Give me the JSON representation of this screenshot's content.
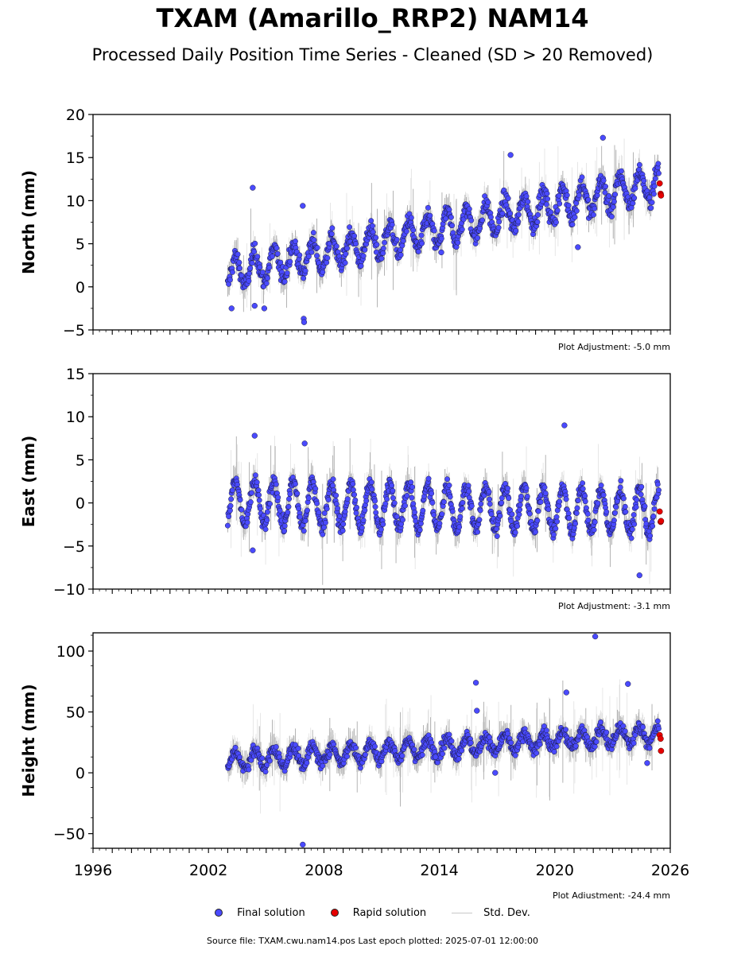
{
  "header": {
    "title": "TXAM (Amarillo_RRP2) NAM14",
    "subtitle": "Processed Daily Position Time Series - Cleaned (SD > 20 Removed)"
  },
  "colors": {
    "final": "#4a4aff",
    "rapid": "#e60000",
    "stddev": "#c8c8c8"
  },
  "legend": {
    "final": "Final solution",
    "rapid": "Rapid solution",
    "stddev": "Std. Dev."
  },
  "source": "Source file: TXAM.cwu.nam14.pos  Last epoch plotted: 2025-07-01 12:00:00",
  "chart_data": [
    {
      "type": "scatter",
      "ylabel": "North (mm)",
      "adjustment": "Plot Adjustment: -5.0 mm",
      "xlim": [
        1996,
        2026
      ],
      "ylim": [
        -5,
        20
      ],
      "yticks": [
        -5,
        0,
        5,
        10,
        15,
        20
      ],
      "trend": {
        "start": [
          2003.0,
          1.5
        ],
        "end": [
          2025.4,
          12.0
        ],
        "seasonal_amp": 1.8,
        "scatter": 1.0
      },
      "series": [
        {
          "name": "Final solution",
          "points": [
            [
              2003.1,
              1.5
            ],
            [
              2005.5,
              3.0
            ],
            [
              2008.0,
              4.0
            ],
            [
              2010.5,
              5.0
            ],
            [
              2013.0,
              7.5
            ],
            [
              2016.0,
              9.5
            ],
            [
              2019.0,
              10.5
            ],
            [
              2022.0,
              12.5
            ],
            [
              2023.5,
              14.0
            ],
            [
              2025.2,
              11.0
            ]
          ]
        },
        {
          "name": "Rapid solution",
          "points": [
            [
              2025.45,
              12.0
            ],
            [
              2025.5,
              10.8
            ],
            [
              2025.52,
              10.6
            ]
          ]
        }
      ],
      "outliers": [
        [
          2003.2,
          -2.5
        ],
        [
          2004.3,
          11.5
        ],
        [
          2004.4,
          -2.2
        ],
        [
          2004.9,
          -2.5
        ],
        [
          2006.9,
          9.4
        ],
        [
          2006.95,
          -3.7
        ],
        [
          2006.97,
          -4.1
        ],
        [
          2014.1,
          4.0
        ],
        [
          2021.2,
          4.6
        ],
        [
          2022.5,
          17.3
        ],
        [
          2017.7,
          15.3
        ]
      ]
    },
    {
      "type": "scatter",
      "ylabel": "East (mm)",
      "adjustment": "Plot Adjustment: -3.1 mm",
      "xlim": [
        1996,
        2026
      ],
      "ylim": [
        -10,
        15
      ],
      "yticks": [
        -10,
        -5,
        0,
        5,
        10,
        15
      ],
      "trend": {
        "start": [
          2003.0,
          0.0
        ],
        "end": [
          2025.4,
          -1.0
        ],
        "seasonal_amp": 2.6,
        "scatter": 0.9
      },
      "series": [
        {
          "name": "Final solution",
          "points": [
            [
              2003.1,
              0.0
            ],
            [
              2006.0,
              2.0
            ],
            [
              2009.0,
              3.0
            ],
            [
              2012.0,
              2.5
            ],
            [
              2015.0,
              0.5
            ],
            [
              2018.0,
              1.0
            ],
            [
              2021.0,
              1.5
            ],
            [
              2024.0,
              0.0
            ],
            [
              2025.2,
              -2.0
            ]
          ]
        },
        {
          "name": "Rapid solution",
          "points": [
            [
              2025.45,
              -1.0
            ],
            [
              2025.5,
              -2.2
            ],
            [
              2025.52,
              -2.1
            ]
          ]
        }
      ],
      "outliers": [
        [
          2004.4,
          7.8
        ],
        [
          2004.3,
          -5.5
        ],
        [
          2007.0,
          6.9
        ],
        [
          2020.5,
          9.0
        ],
        [
          2024.4,
          -8.4
        ]
      ]
    },
    {
      "type": "scatter",
      "ylabel": "Height (mm)",
      "adjustment": "Plot Adjustment: -24.4 mm",
      "xlim": [
        1996,
        2026
      ],
      "ylim": [
        -62,
        115
      ],
      "yticks": [
        -50,
        0,
        50,
        100
      ],
      "xticks": [
        1996,
        2002,
        2008,
        2014,
        2020,
        2026
      ],
      "trend": {
        "start": [
          2003.0,
          10.0
        ],
        "end": [
          2025.4,
          32.0
        ],
        "seasonal_amp": 7.0,
        "scatter": 5.0
      },
      "series": [
        {
          "name": "Final solution",
          "points": [
            [
              2003.1,
              10.0
            ],
            [
              2005.0,
              2.0
            ],
            [
              2006.5,
              25.0
            ],
            [
              2010.0,
              28.0
            ],
            [
              2013.0,
              37.0
            ],
            [
              2016.0,
              30.0
            ],
            [
              2019.0,
              27.0
            ],
            [
              2022.0,
              35.0
            ],
            [
              2025.2,
              25.0
            ]
          ]
        },
        {
          "name": "Rapid solution",
          "points": [
            [
              2025.45,
              31.0
            ],
            [
              2025.5,
              28.0
            ],
            [
              2025.52,
              18.0
            ]
          ]
        }
      ],
      "outliers": [
        [
          2006.9,
          -59.0
        ],
        [
          2015.9,
          74.0
        ],
        [
          2015.95,
          51.0
        ],
        [
          2016.9,
          0.0
        ],
        [
          2020.6,
          66.0
        ],
        [
          2022.1,
          112.0
        ],
        [
          2023.8,
          73.0
        ],
        [
          2024.8,
          8.0
        ],
        [
          2013.8,
          13.0
        ]
      ]
    }
  ]
}
